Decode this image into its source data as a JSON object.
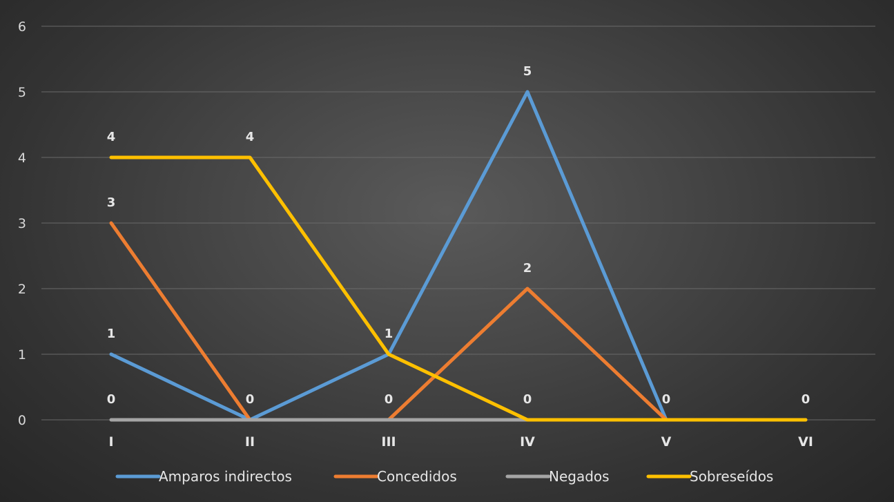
{
  "chart_data": {
    "type": "line",
    "categories": [
      "I",
      "II",
      "III",
      "IV",
      "V",
      "VI"
    ],
    "ylim": [
      0,
      6
    ],
    "yticks": [
      0,
      1,
      2,
      3,
      4,
      5,
      6
    ],
    "grid": true,
    "legend_position": "bottom",
    "series": [
      {
        "name": "Amparos indirectos",
        "color": "#5b9bd5",
        "values": [
          1,
          0,
          1,
          5,
          0,
          null
        ]
      },
      {
        "name": "Concedidos",
        "color": "#ed7d31",
        "values": [
          3,
          0,
          0,
          2,
          0,
          null
        ]
      },
      {
        "name": "Negados",
        "color": "#a5a5a5",
        "values": [
          0,
          0,
          0,
          0,
          0,
          0
        ]
      },
      {
        "name": "Sobreseídos",
        "color": "#ffc000",
        "values": [
          4,
          4,
          1,
          0,
          0,
          0
        ]
      }
    ],
    "data_labels": [
      {
        "category": "I",
        "value": 4
      },
      {
        "category": "I",
        "value": 3
      },
      {
        "category": "I",
        "value": 1
      },
      {
        "category": "I",
        "value": 0
      },
      {
        "category": "II",
        "value": 4
      },
      {
        "category": "II",
        "value": 0
      },
      {
        "category": "III",
        "value": 1
      },
      {
        "category": "III",
        "value": 0
      },
      {
        "category": "IV",
        "value": 5
      },
      {
        "category": "IV",
        "value": 2
      },
      {
        "category": "IV",
        "value": 0
      },
      {
        "category": "V",
        "value": 0
      },
      {
        "category": "VI",
        "value": 0
      }
    ]
  }
}
